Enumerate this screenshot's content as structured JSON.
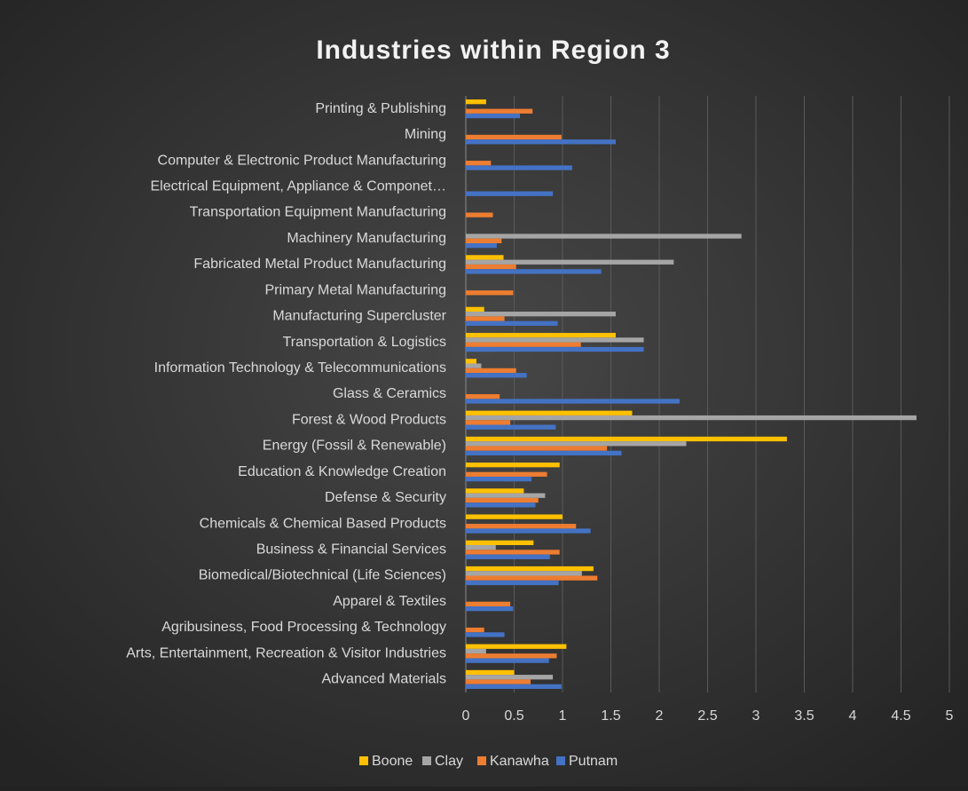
{
  "chart_data": {
    "type": "hbar",
    "title": "Industries within Region 3",
    "categories": [
      "Printing & Publishing",
      "Mining",
      "Computer & Electronic Product Manufacturing",
      "Electrical Equipment, Appliance & Componet…",
      "Transportation Equipment Manufacturing",
      "Machinery Manufacturing",
      "Fabricated Metal Product Manufacturing",
      "Primary Metal Manufacturing",
      "Manufacturing Supercluster",
      "Transportation & Logistics",
      "Information Technology & Telecommunications",
      "Glass & Ceramics",
      "Forest & Wood Products",
      "Energy (Fossil & Renewable)",
      "Education & Knowledge Creation",
      "Defense & Security",
      "Chemicals & Chemical Based Products",
      "Business & Financial Services",
      "Biomedical/Biotechnical (Life Sciences)",
      "Apparel & Textiles",
      "Agribusiness, Food Processing & Technology",
      "Arts, Entertainment, Recreation & Visitor Industries",
      "Advanced Materials"
    ],
    "series": [
      {
        "name": "Boone",
        "color": "#ffc000",
        "values": [
          0.21,
          0,
          0,
          0,
          0,
          0,
          0.39,
          0,
          0.19,
          1.55,
          0.11,
          0,
          1.72,
          3.32,
          0.97,
          0.6,
          1.0,
          0.7,
          1.32,
          0,
          0,
          1.04,
          0.5
        ]
      },
      {
        "name": "Clay",
        "color": "#a5a5a5",
        "values": [
          0,
          0,
          0,
          0,
          0,
          2.85,
          2.15,
          0,
          1.55,
          1.84,
          0.16,
          0,
          4.66,
          2.28,
          0,
          0.82,
          0,
          0.31,
          1.2,
          0,
          0,
          0.21,
          0.9
        ]
      },
      {
        "name": "Kanawha",
        "color": "#ed7d31",
        "values": [
          0.69,
          0.99,
          0.26,
          0,
          0.28,
          0.37,
          0.52,
          0.49,
          0.4,
          1.19,
          0.52,
          0.35,
          0.46,
          1.46,
          0.84,
          0.75,
          1.14,
          0.97,
          1.36,
          0.46,
          0.19,
          0.94,
          0.67
        ]
      },
      {
        "name": "Putnam",
        "color": "#4472c4",
        "values": [
          0.56,
          1.55,
          1.1,
          0.9,
          0,
          0.32,
          1.4,
          0,
          0.95,
          1.84,
          0.63,
          2.21,
          0.93,
          1.61,
          0.68,
          0.72,
          1.29,
          0.87,
          0.96,
          0.49,
          0.4,
          0.86,
          0.99
        ]
      }
    ],
    "xlim": [
      0,
      5
    ],
    "xticks": [
      0,
      0.5,
      1,
      1.5,
      2,
      2.5,
      3,
      3.5,
      4,
      4.5,
      5
    ],
    "grid": true,
    "legend": "bottom"
  }
}
